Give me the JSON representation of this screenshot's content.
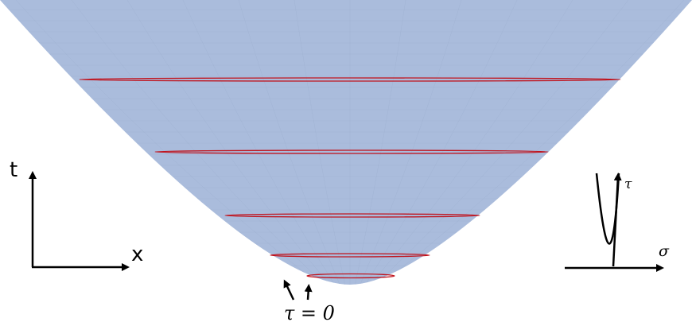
{
  "axes_left": {
    "vertical_label": "t",
    "horizontal_label": "x"
  },
  "axes_right": {
    "vertical_label": "τ",
    "horizontal_label": "σ"
  },
  "annotation": {
    "text": "τ = 0"
  },
  "colors": {
    "surface": "#aabcdc",
    "grid": "#9dafcf",
    "slice": "#c0141e",
    "ink": "#000000"
  },
  "icons": [
    "up-arrow-icon",
    "right-arrow-icon",
    "pointer-arrow-icon"
  ]
}
